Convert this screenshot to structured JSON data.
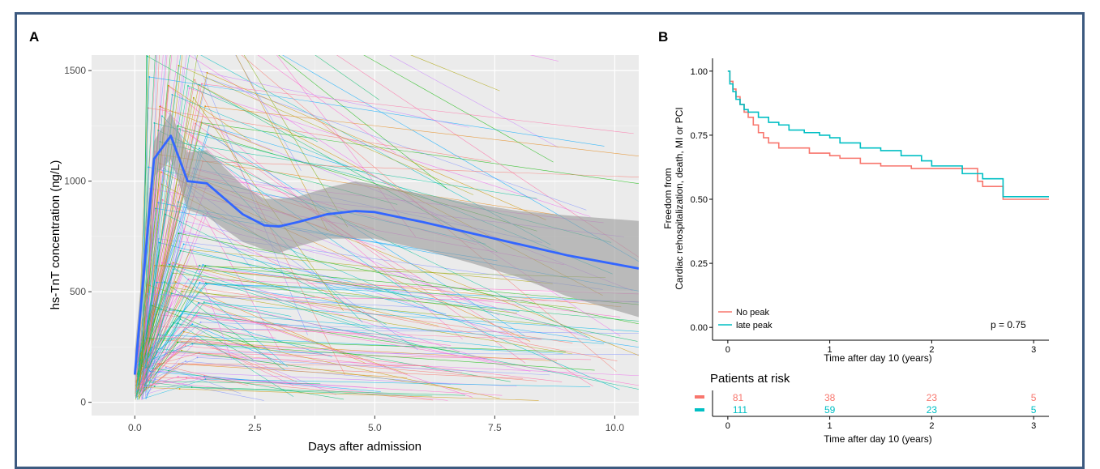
{
  "colors": {
    "frame": "#3d5a80",
    "panel_bg": "#ebebeb",
    "mean_line": "#3366ff",
    "ci_band": "#999999",
    "no_peak": "#f8766d",
    "late_peak": "#00bfc4"
  },
  "panel_a": {
    "tag": "A",
    "chart_data": {
      "type": "line",
      "xlabel": "Days after admission",
      "ylabel": "hs-TnT concentration (ng/L)",
      "xlim": [
        -0.9,
        10.5
      ],
      "ylim": [
        -60,
        1570
      ],
      "x_ticks": [
        "0.0",
        "2.5",
        "5.0",
        "7.5",
        "10.0"
      ],
      "x_tick_values": [
        0,
        2.5,
        5,
        7.5,
        10
      ],
      "y_ticks": [
        "0",
        "500",
        "1000",
        "1500"
      ],
      "y_tick_values": [
        0,
        500,
        1000,
        1500
      ],
      "grid": true,
      "background": "gray",
      "mean_series": {
        "x": [
          0,
          0.4,
          0.75,
          1.1,
          1.5,
          2.25,
          2.7,
          3.0,
          3.4,
          4.0,
          4.6,
          5.0,
          6.0,
          7.0,
          8.0,
          9.0,
          10.5
        ],
        "y": [
          125,
          1100,
          1205,
          1000,
          990,
          850,
          800,
          795,
          815,
          850,
          865,
          860,
          815,
          765,
          715,
          665,
          605
        ]
      },
      "ci_upper": [
        235,
        1180,
        1310,
        1130,
        1140,
        980,
        920,
        920,
        930,
        970,
        1000,
        985,
        940,
        900,
        865,
        845,
        820
      ],
      "ci_lower": [
        20,
        1020,
        1100,
        870,
        840,
        725,
        690,
        675,
        705,
        740,
        740,
        740,
        690,
        630,
        565,
        480,
        385
      ],
      "individual_trajectories": "many thin patient lines (colored)"
    }
  },
  "panel_b": {
    "tag": "B",
    "chart_data": {
      "type": "line",
      "xlabel": "Time after day 10 (years)",
      "ylabel_line1": "Freedom from",
      "ylabel_line2": "Cardiac rehospitalization, death, MI or PCI",
      "xlim": [
        -0.15,
        3.15
      ],
      "ylim": [
        -0.05,
        1.05
      ],
      "x_ticks": [
        "0",
        "1",
        "2",
        "3"
      ],
      "x_tick_values": [
        0,
        1,
        2,
        3
      ],
      "y_ticks": [
        "0.00",
        "0.25",
        "0.50",
        "0.75",
        "1.00"
      ],
      "y_tick_values": [
        0,
        0.25,
        0.5,
        0.75,
        1.0
      ],
      "grid": false,
      "legend_position": "bottom-left",
      "annotation": "p = 0.75",
      "series": [
        {
          "name": "No peak",
          "color": "#f8766d",
          "x": [
            0,
            0.02,
            0.05,
            0.08,
            0.12,
            0.16,
            0.2,
            0.25,
            0.3,
            0.35,
            0.4,
            0.5,
            0.6,
            0.8,
            1.0,
            1.1,
            1.3,
            1.5,
            1.8,
            2.0,
            2.2,
            2.45,
            2.5,
            2.7,
            3.15
          ],
          "y": [
            1.0,
            0.96,
            0.93,
            0.9,
            0.87,
            0.84,
            0.82,
            0.79,
            0.76,
            0.74,
            0.72,
            0.7,
            0.7,
            0.68,
            0.67,
            0.66,
            0.64,
            0.63,
            0.62,
            0.62,
            0.62,
            0.57,
            0.55,
            0.5,
            0.5
          ]
        },
        {
          "name": "late peak",
          "color": "#00bfc4",
          "x": [
            0,
            0.02,
            0.05,
            0.08,
            0.12,
            0.16,
            0.2,
            0.3,
            0.4,
            0.5,
            0.6,
            0.75,
            0.9,
            1.0,
            1.1,
            1.3,
            1.5,
            1.7,
            1.9,
            2.0,
            2.3,
            2.5,
            2.7,
            3.15
          ],
          "y": [
            1.0,
            0.95,
            0.92,
            0.89,
            0.87,
            0.85,
            0.84,
            0.82,
            0.8,
            0.79,
            0.77,
            0.76,
            0.75,
            0.74,
            0.72,
            0.7,
            0.69,
            0.67,
            0.65,
            0.63,
            0.6,
            0.58,
            0.51,
            0.51
          ]
        }
      ]
    },
    "risk_table": {
      "title": "Patients at risk",
      "xlabel": "Time after day 10 (years)",
      "x_ticks": [
        "0",
        "1",
        "2",
        "3"
      ],
      "rows": [
        {
          "color": "#f8766d",
          "values": [
            "81",
            "38",
            "23",
            "5"
          ]
        },
        {
          "color": "#00bfc4",
          "values": [
            "111",
            "59",
            "23",
            "5"
          ]
        }
      ]
    }
  }
}
